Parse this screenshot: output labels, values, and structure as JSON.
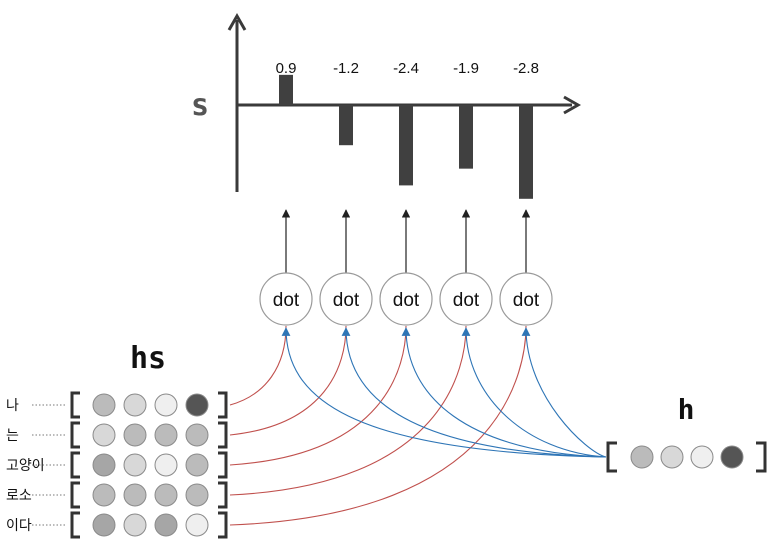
{
  "labels": {
    "score_symbol": "s",
    "encoder_states_symbol": "hs",
    "decoder_state_symbol": "h",
    "op": "dot"
  },
  "chart_data": {
    "type": "bar",
    "values": [
      0.9,
      -1.2,
      -2.4,
      -1.9,
      -2.8
    ],
    "value_labels": [
      "0.9",
      "-1.2",
      "-2.4",
      "-1.9",
      "-2.8"
    ]
  },
  "words": [
    "나",
    "는",
    "고양이",
    "로소",
    "이다"
  ],
  "hs_shades": [
    [
      "#bbbbbb",
      "#d8d8d8",
      "#efefef",
      "#555555"
    ],
    [
      "#d8d8d8",
      "#bbbbbb",
      "#bbbbbb",
      "#bbbbbb"
    ],
    [
      "#a6a6a6",
      "#d8d8d8",
      "#efefef",
      "#bbbbbb"
    ],
    [
      "#bbbbbb",
      "#bbbbbb",
      "#bbbbbb",
      "#bbbbbb"
    ],
    [
      "#a6a6a6",
      "#d8d8d8",
      "#a6a6a6",
      "#efefef"
    ]
  ],
  "h_shades": [
    "#bbbbbb",
    "#d8d8d8",
    "#efefef",
    "#555555"
  ],
  "colors": {
    "bar": "#404040",
    "axis": "#3a3a3a",
    "red_line": "#c0504d",
    "blue_line": "#2e75b6",
    "circle_stroke": "#9a9a9a"
  }
}
